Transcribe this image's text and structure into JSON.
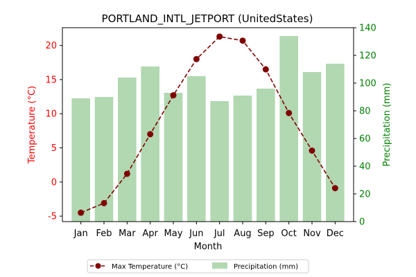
{
  "chart_data": {
    "type": "bar+line",
    "title": "PORTLAND_INTL_JETPORT (UnitedStates)",
    "xlabel": "Month",
    "ylabel_left": "Temperature (°C)",
    "ylabel_right": "Precipitation (mm)",
    "categories": [
      "Jan",
      "Feb",
      "Mar",
      "Apr",
      "May",
      "Jun",
      "Jul",
      "Aug",
      "Sep",
      "Oct",
      "Nov",
      "Dec"
    ],
    "ylim_left": [
      -5.8,
      22.6
    ],
    "ylim_right": [
      0,
      140
    ],
    "yticks_left": [
      -5,
      0,
      5,
      10,
      15,
      20
    ],
    "yticks_right": [
      0,
      20,
      40,
      60,
      80,
      100,
      120,
      140
    ],
    "grid": false,
    "legend_position": "bottom-center",
    "series": [
      {
        "name": "Max Temperature (°C)",
        "type": "line",
        "axis": "left",
        "color": "#800000",
        "values": [
          -4.5,
          -3.1,
          1.2,
          7.0,
          12.7,
          18.0,
          21.3,
          20.7,
          16.5,
          10.1,
          4.6,
          -0.9
        ]
      },
      {
        "name": "Precipitation (mm)",
        "type": "bar",
        "axis": "right",
        "color": "#b2d8b2",
        "values": [
          89,
          90,
          104,
          112,
          93,
          105,
          87,
          91,
          96,
          134,
          108,
          114
        ]
      }
    ]
  },
  "colors": {
    "left_axis": "#ff0000",
    "right_axis": "#008000",
    "axis": "#000000"
  }
}
